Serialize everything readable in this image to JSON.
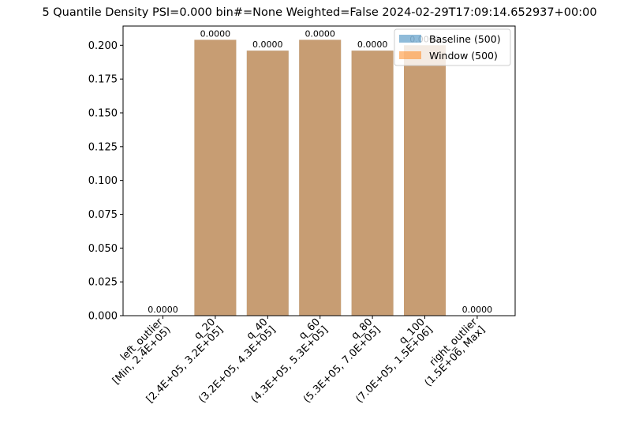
{
  "chart_data": {
    "type": "bar",
    "title": "5 Quantile Density PSI=0.000 bin#=None Weighted=False 2024-02-29T17:09:14.652937+00:00",
    "xlabel": "",
    "ylabel": "",
    "ylim": [
      0,
      0.2142
    ],
    "yticks": [
      "0.000",
      "0.025",
      "0.050",
      "0.075",
      "0.100",
      "0.125",
      "0.150",
      "0.175",
      "0.200"
    ],
    "categories": [
      "left_outlier\n[Min, 2.4E+05)",
      "q_20\n[2.4E+05, 3.2E+05]",
      "q_40\n(3.2E+05, 4.3E+05]",
      "q_60\n(4.3E+05, 5.3E+05]",
      "q_80\n(5.3E+05, 7.0E+05]",
      "q_100\n(7.0E+05, 1.5E+06]",
      "right_outlier\n(1.5E+06, Max]"
    ],
    "series": [
      {
        "name": "Baseline (500)",
        "color": "#1f77b4",
        "opacity": 0.5,
        "values": [
          0.0,
          0.204,
          0.196,
          0.204,
          0.196,
          0.2,
          0.0
        ]
      },
      {
        "name": "Window (500)",
        "color": "#ff7f0e",
        "opacity": 0.5,
        "values": [
          0.0,
          0.204,
          0.196,
          0.204,
          0.196,
          0.2,
          0.0
        ]
      }
    ],
    "bar_labels": [
      "0.0000",
      "0.0000",
      "0.0000",
      "0.0000",
      "0.0000",
      "0.0000",
      "0.0000"
    ],
    "legend": "top-right",
    "grid": false
  }
}
